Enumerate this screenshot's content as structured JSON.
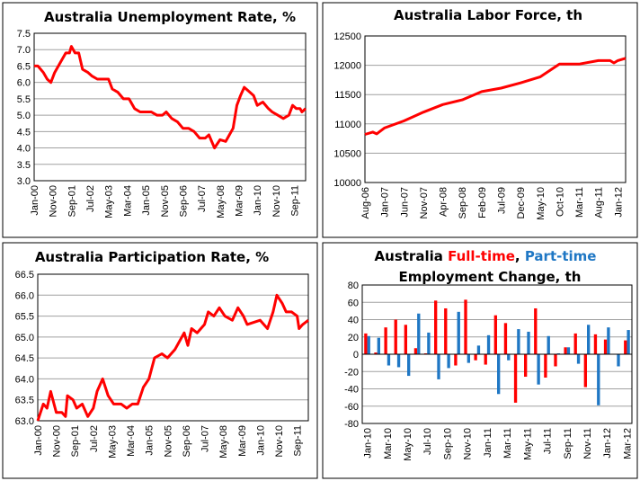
{
  "colors": {
    "line": "#ff0000",
    "full_time": "#ff0000",
    "part_time": "#1f77c4",
    "grid": "#a0a0a0"
  },
  "chart_data": [
    {
      "type": "line",
      "title": "Australia Unemployment Rate, %",
      "ylim": [
        3.0,
        7.5
      ],
      "yticks": [
        "3.0",
        "3.5",
        "4.0",
        "4.5",
        "5.0",
        "5.5",
        "6.0",
        "6.5",
        "7.0",
        "7.5"
      ],
      "xlim": [
        "Jan-00",
        "Mar-12"
      ],
      "xticks": [
        "Jan-00",
        "Nov-00",
        "Sep-01",
        "Jul-02",
        "May-03",
        "Mar-04",
        "Jan-05",
        "Nov-05",
        "Sep-06",
        "Jul-07",
        "May-08",
        "Mar-09",
        "Jan-10",
        "Nov-10",
        "Sep-11"
      ],
      "grid": true,
      "x": [
        "Jan-00",
        "Mar-00",
        "Jun-00",
        "Aug-00",
        "Oct-00",
        "Dec-00",
        "Mar-01",
        "Jun-01",
        "Aug-01",
        "Sep-01",
        "Nov-01",
        "Jan-02",
        "Mar-02",
        "Jun-02",
        "Aug-02",
        "Nov-02",
        "Feb-03",
        "May-03",
        "Jul-03",
        "Oct-03",
        "Jan-04",
        "Apr-04",
        "Jul-04",
        "Oct-04",
        "Jan-05",
        "Apr-05",
        "Jul-05",
        "Oct-05",
        "Dec-05",
        "Mar-06",
        "Jun-06",
        "Sep-06",
        "Dec-06",
        "Mar-07",
        "Jun-07",
        "Sep-07",
        "Nov-07",
        "Feb-08",
        "May-08",
        "Aug-08",
        "Oct-08",
        "Dec-08",
        "Feb-09",
        "Apr-09",
        "Jun-09",
        "Aug-09",
        "Nov-09",
        "Jan-10",
        "Apr-10",
        "Jul-10",
        "Sep-10",
        "Dec-10",
        "Mar-11",
        "Jun-11",
        "Aug-11",
        "Oct-11",
        "Dec-11",
        "Jan-12",
        "Mar-12"
      ],
      "values": [
        6.5,
        6.5,
        6.3,
        6.1,
        6.0,
        6.3,
        6.6,
        6.9,
        6.9,
        7.1,
        6.9,
        6.9,
        6.4,
        6.3,
        6.2,
        6.1,
        6.1,
        6.1,
        5.8,
        5.7,
        5.5,
        5.5,
        5.2,
        5.1,
        5.1,
        5.1,
        5.0,
        5.0,
        5.1,
        4.9,
        4.8,
        4.6,
        4.6,
        4.5,
        4.3,
        4.3,
        4.4,
        4.0,
        4.25,
        4.2,
        4.4,
        4.6,
        5.3,
        5.6,
        5.85,
        5.75,
        5.6,
        5.3,
        5.4,
        5.2,
        5.1,
        5.0,
        4.9,
        5.0,
        5.3,
        5.2,
        5.2,
        5.1,
        5.2
      ]
    },
    {
      "type": "line",
      "title": "Australia Labor Force, th",
      "ylim": [
        10000,
        12500
      ],
      "yticks": [
        "10000",
        "10500",
        "11000",
        "11500",
        "12000",
        "12500"
      ],
      "xlim": [
        "Aug-06",
        "Mar-12"
      ],
      "xticks": [
        "Aug-06",
        "Jan-07",
        "Jun-07",
        "Nov-07",
        "Apr-08",
        "Sep-08",
        "Feb-09",
        "Jul-09",
        "Dec-09",
        "May-10",
        "Oct-10",
        "Mar-11",
        "Aug-11",
        "Jan-12"
      ],
      "grid": true,
      "x": [
        "Aug-06",
        "Oct-06",
        "Nov-06",
        "Jan-07",
        "Jun-07",
        "Nov-07",
        "Apr-08",
        "Sep-08",
        "Feb-09",
        "Jul-09",
        "Dec-09",
        "May-10",
        "Oct-10",
        "Mar-11",
        "Aug-11",
        "Nov-11",
        "Dec-11",
        "Jan-12",
        "Mar-12"
      ],
      "values": [
        10820,
        10860,
        10830,
        10930,
        11050,
        11200,
        11330,
        11410,
        11550,
        11610,
        11700,
        11800,
        12020,
        12020,
        12080,
        12080,
        12040,
        12080,
        12120
      ]
    },
    {
      "type": "line",
      "title": "Australia Participation Rate, %",
      "ylim": [
        63.0,
        66.5
      ],
      "yticks": [
        "63.0",
        "63.5",
        "64.0",
        "64.5",
        "65.0",
        "65.5",
        "66.0",
        "66.5"
      ],
      "xlim": [
        "Jan-00",
        "Mar-12"
      ],
      "xticks": [
        "Jan-00",
        "Nov-00",
        "Sep-01",
        "Jul-02",
        "May-03",
        "Mar-04",
        "Jan-05",
        "Nov-05",
        "Sep-06",
        "Jul-07",
        "May-08",
        "Mar-09",
        "Jan-10",
        "Nov-10",
        "Sep-11"
      ],
      "grid": true,
      "x": [
        "Jan-00",
        "Apr-00",
        "Jun-00",
        "Aug-00",
        "Nov-00",
        "Feb-01",
        "Apr-01",
        "May-01",
        "Aug-01",
        "Oct-01",
        "Jan-02",
        "Apr-02",
        "Jul-02",
        "Sep-02",
        "Dec-02",
        "Mar-03",
        "Jun-03",
        "Oct-03",
        "Jan-04",
        "Apr-04",
        "Jul-04",
        "Oct-04",
        "Jan-05",
        "Apr-05",
        "Aug-05",
        "Nov-05",
        "Mar-06",
        "Aug-06",
        "Oct-06",
        "Dec-06",
        "Mar-07",
        "Jul-07",
        "Sep-07",
        "Dec-07",
        "Mar-08",
        "Jun-08",
        "Oct-08",
        "Jan-09",
        "Apr-09",
        "Jun-09",
        "Jan-10",
        "May-10",
        "Aug-10",
        "Oct-10",
        "Jan-11",
        "Mar-11",
        "Jun-11",
        "Sep-11",
        "Oct-11",
        "Dec-11",
        "Mar-12"
      ],
      "values": [
        63.0,
        63.4,
        63.3,
        63.7,
        63.2,
        63.2,
        63.1,
        63.6,
        63.5,
        63.3,
        63.4,
        63.1,
        63.3,
        63.7,
        64.0,
        63.6,
        63.4,
        63.4,
        63.3,
        63.4,
        63.4,
        63.8,
        64.0,
        64.5,
        64.6,
        64.5,
        64.7,
        65.1,
        64.8,
        65.2,
        65.1,
        65.3,
        65.6,
        65.5,
        65.7,
        65.5,
        65.4,
        65.7,
        65.5,
        65.3,
        65.4,
        65.2,
        65.6,
        66.0,
        65.8,
        65.6,
        65.6,
        65.5,
        65.2,
        65.3,
        65.4
      ]
    },
    {
      "type": "bar",
      "title_parts": [
        "Australia ",
        "Full-time",
        ", ",
        "Part-time"
      ],
      "title_line2": "Employment Change, th",
      "ylim": [
        -80,
        80
      ],
      "yticks": [
        "-80",
        "-60",
        "-40",
        "-20",
        "0",
        "20",
        "40",
        "60",
        "80"
      ],
      "xticks": [
        "Jan-10",
        "Mar-10",
        "May-10",
        "Jul-10",
        "Sep-10",
        "Nov-10",
        "Jan-11",
        "Mar-11",
        "May-11",
        "Jul-11",
        "Sep-11",
        "Nov-11",
        "Jan-12",
        "Mar-12"
      ],
      "grid": true,
      "categories": [
        "Jan-10",
        "Feb-10",
        "Mar-10",
        "Apr-10",
        "May-10",
        "Jun-10",
        "Jul-10",
        "Aug-10",
        "Sep-10",
        "Oct-10",
        "Nov-10",
        "Dec-10",
        "Jan-11",
        "Feb-11",
        "Mar-11",
        "Apr-11",
        "May-11",
        "Jun-11",
        "Jul-11",
        "Aug-11",
        "Sep-11",
        "Oct-11",
        "Nov-11",
        "Dec-11",
        "Jan-12",
        "Feb-12",
        "Mar-12"
      ],
      "series": [
        {
          "name": "Full-time",
          "values": [
            24,
            2,
            31,
            40,
            34,
            7,
            1,
            62,
            53,
            -13,
            63,
            -7,
            -12,
            45,
            36,
            -56,
            -26,
            53,
            -27,
            -14,
            8,
            24,
            -38,
            23,
            17,
            0,
            16
          ]
        },
        {
          "name": "Part-time",
          "values": [
            21,
            19,
            -13,
            -15,
            -25,
            47,
            25,
            -29,
            -16,
            49,
            -10,
            10,
            22,
            -46,
            -7,
            29,
            26,
            -35,
            21,
            1,
            8,
            -11,
            34,
            -59,
            31,
            -14,
            28
          ]
        }
      ]
    }
  ]
}
